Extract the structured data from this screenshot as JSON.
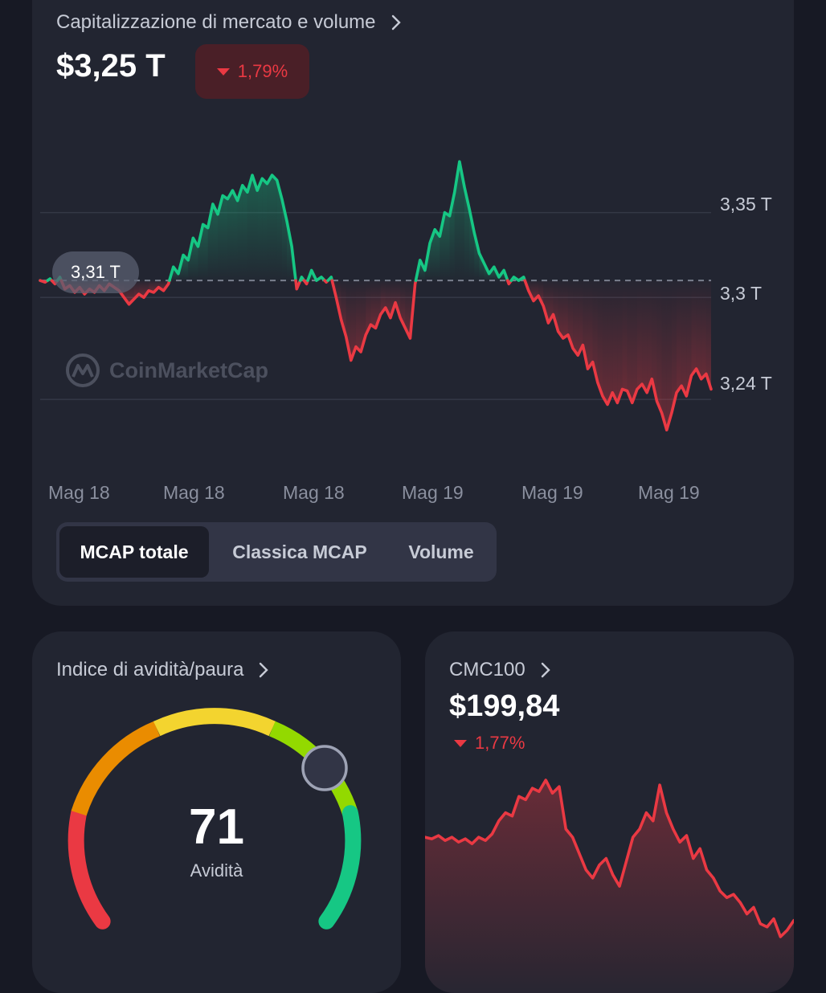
{
  "market_cap": {
    "title": "Capitalizzazione di mercato e volume",
    "value": "$3,25 T",
    "change": "1,79%",
    "current_label": "3,31 T",
    "watermark": "CoinMarketCap",
    "y_ticks": [
      "3,35 T",
      "3,3 T",
      "3,24 T"
    ],
    "x_ticks": [
      "Mag 18",
      "Mag 18",
      "Mag 18",
      "Mag 19",
      "Mag 19",
      "Mag 19"
    ],
    "tabs": [
      {
        "label": "MCAP totale",
        "active": true
      },
      {
        "label": "Classica MCAP",
        "active": false
      },
      {
        "label": "Volume",
        "active": false
      }
    ],
    "colors": {
      "up": "#16c784",
      "down": "#ea3943"
    }
  },
  "fear_greed": {
    "title": "Indice di avidità/paura",
    "value": "71",
    "label": "Avidità"
  },
  "cmc100": {
    "title": "CMC100",
    "value": "$199,84",
    "change": "1,77%"
  },
  "chart_data": [
    {
      "type": "line",
      "ylim": [
        3.215,
        3.39
      ],
      "baseline": 3.31,
      "yticks": [
        3.35,
        3.3,
        3.24
      ],
      "series": [
        {
          "values": [
            3.31,
            3.309,
            3.311,
            3.308,
            3.312,
            3.305,
            3.307,
            3.303,
            3.306,
            3.302,
            3.305,
            3.303,
            3.307,
            3.304,
            3.308,
            3.306,
            3.304,
            3.3,
            3.296,
            3.299,
            3.302,
            3.3,
            3.304,
            3.303,
            3.306,
            3.304,
            3.308,
            3.318,
            3.314,
            3.325,
            3.322,
            3.335,
            3.33,
            3.343,
            3.341,
            3.355,
            3.349,
            3.36,
            3.358,
            3.363,
            3.357,
            3.366,
            3.362,
            3.372,
            3.363,
            3.37,
            3.367,
            3.372,
            3.369,
            3.358,
            3.345,
            3.33,
            3.305,
            3.312,
            3.308,
            3.316,
            3.31,
            3.312,
            3.309,
            3.312,
            3.3,
            3.287,
            3.277,
            3.263,
            3.271,
            3.268,
            3.278,
            3.284,
            3.282,
            3.29,
            3.294,
            3.288,
            3.297,
            3.288,
            3.282,
            3.276,
            3.308,
            3.322,
            3.316,
            3.332,
            3.34,
            3.336,
            3.35,
            3.348,
            3.362,
            3.38,
            3.365,
            3.352,
            3.338,
            3.326,
            3.32,
            3.314,
            3.318,
            3.312,
            3.316,
            3.308,
            3.312,
            3.31,
            3.312,
            3.304,
            3.298,
            3.301,
            3.295,
            3.285,
            3.29,
            3.28,
            3.276,
            3.278,
            3.27,
            3.266,
            3.272,
            3.258,
            3.262,
            3.25,
            3.242,
            3.237,
            3.244,
            3.238,
            3.246,
            3.245,
            3.238,
            3.246,
            3.249,
            3.244,
            3.252,
            3.239,
            3.232,
            3.222,
            3.232,
            3.244,
            3.248,
            3.242,
            3.254,
            3.258,
            3.252,
            3.255,
            3.246
          ]
        }
      ]
    },
    {
      "type": "line",
      "series": [
        {
          "values": [
            199.95,
            199.94,
            199.96,
            199.93,
            199.95,
            199.92,
            199.94,
            199.91,
            199.95,
            199.93,
            199.97,
            200.05,
            200.1,
            200.08,
            200.2,
            200.18,
            200.25,
            200.23,
            200.3,
            200.22,
            200.26,
            200.0,
            199.95,
            199.85,
            199.75,
            199.7,
            199.78,
            199.82,
            199.72,
            199.65,
            199.8,
            199.95,
            200.0,
            200.1,
            200.05,
            200.27,
            200.1,
            200.0,
            199.92,
            199.96,
            199.82,
            199.88,
            199.75,
            199.7,
            199.62,
            199.58,
            199.6,
            199.55,
            199.48,
            199.52,
            199.42,
            199.4,
            199.45,
            199.34,
            199.38,
            199.44
          ]
        }
      ]
    }
  ]
}
